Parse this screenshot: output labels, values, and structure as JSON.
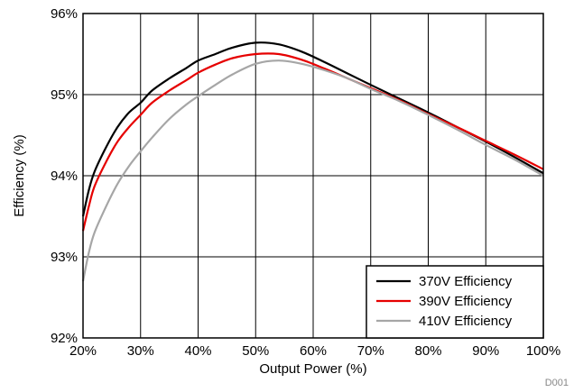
{
  "chart_data": {
    "type": "line",
    "xlabel": "Output Power (%)",
    "ylabel": "Efficiency (%)",
    "xlim": [
      20,
      100
    ],
    "ylim": [
      92,
      96
    ],
    "x_ticks": [
      20,
      30,
      40,
      50,
      60,
      70,
      80,
      90,
      100
    ],
    "y_ticks": [
      92,
      93,
      94,
      95,
      96
    ],
    "x_tick_labels": [
      "20%",
      "30%",
      "40%",
      "50%",
      "60%",
      "70%",
      "80%",
      "90%",
      "100%"
    ],
    "y_tick_labels": [
      "92%",
      "93%",
      "94%",
      "95%",
      "96%"
    ],
    "grid": true,
    "legend_position": "bottom-right",
    "figure_id": "D001",
    "series": [
      {
        "name": "370V Efficiency",
        "color": "#000000",
        "x": [
          20,
          21,
          22,
          24,
          26,
          28,
          30,
          32,
          35,
          38,
          40,
          43,
          46,
          50,
          54,
          58,
          62,
          66,
          70,
          75,
          80,
          85,
          90,
          95,
          100
        ],
        "y": [
          93.5,
          93.82,
          94.05,
          94.35,
          94.6,
          94.78,
          94.9,
          95.05,
          95.2,
          95.33,
          95.42,
          95.5,
          95.58,
          95.64,
          95.62,
          95.53,
          95.4,
          95.26,
          95.12,
          94.95,
          94.78,
          94.6,
          94.42,
          94.23,
          94.03
        ]
      },
      {
        "name": "390V Efficiency",
        "color": "#e60000",
        "x": [
          20,
          21,
          22,
          24,
          26,
          28,
          30,
          32,
          35,
          38,
          40,
          43,
          46,
          50,
          54,
          58,
          62,
          66,
          70,
          75,
          80,
          85,
          90,
          95,
          100
        ],
        "y": [
          93.32,
          93.62,
          93.87,
          94.17,
          94.42,
          94.6,
          94.75,
          94.9,
          95.05,
          95.18,
          95.27,
          95.37,
          95.45,
          95.5,
          95.5,
          95.43,
          95.32,
          95.2,
          95.08,
          94.93,
          94.76,
          94.6,
          94.43,
          94.26,
          94.08
        ]
      },
      {
        "name": "410V Efficiency",
        "color": "#a6a6a6",
        "x": [
          20,
          21,
          22,
          24,
          26,
          28,
          30,
          32,
          35,
          38,
          40,
          43,
          46,
          50,
          54,
          58,
          62,
          66,
          70,
          75,
          80,
          85,
          90,
          95,
          100
        ],
        "y": [
          92.7,
          93.05,
          93.3,
          93.62,
          93.9,
          94.12,
          94.3,
          94.47,
          94.7,
          94.88,
          94.98,
          95.12,
          95.25,
          95.38,
          95.42,
          95.38,
          95.3,
          95.2,
          95.07,
          94.92,
          94.75,
          94.57,
          94.38,
          94.2,
          94.0
        ]
      }
    ]
  }
}
